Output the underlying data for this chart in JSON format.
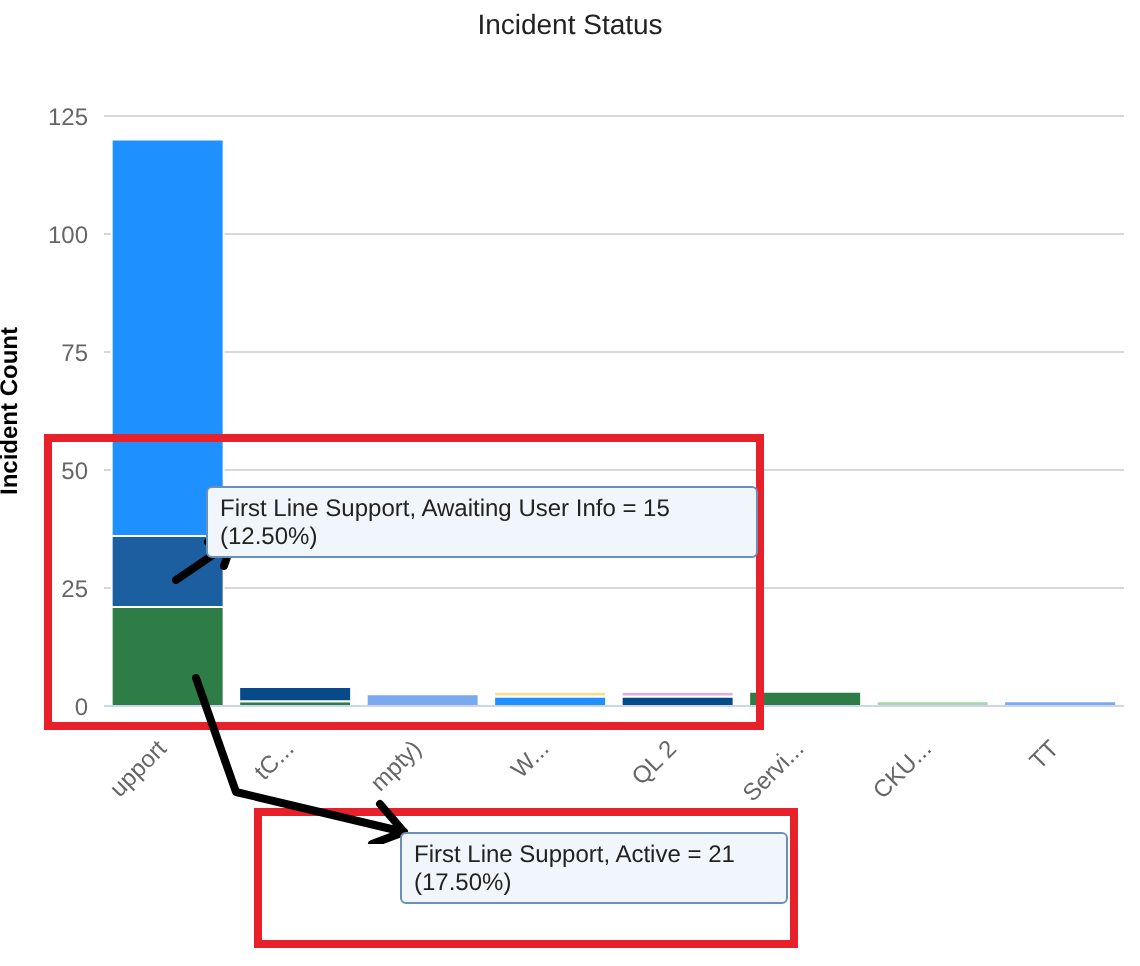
{
  "chart_data": {
    "type": "bar",
    "title": "Incident Status",
    "ylabel": "Incident Count",
    "stacked": true,
    "grid": "y",
    "categories": [
      "upport",
      "tC...",
      "mpty)",
      "W...",
      "QL 2",
      "Servi...",
      "CKU...",
      "TT"
    ],
    "series": [
      {
        "color": "#2e7d46",
        "values": [
          21,
          1,
          null,
          null,
          null,
          3,
          null,
          null
        ]
      },
      {
        "color": "#1c5fa0",
        "values": [
          15,
          null,
          null,
          null,
          null,
          null,
          null,
          null
        ]
      },
      {
        "color": "#1e90ff",
        "values": [
          84,
          null,
          null,
          2,
          null,
          null,
          null,
          null
        ]
      },
      {
        "color": "#064a8a",
        "values": [
          null,
          3,
          null,
          null,
          2,
          null,
          null,
          null
        ]
      },
      {
        "color": "#7aa9ef",
        "values": [
          null,
          null,
          2.5,
          null,
          null,
          null,
          null,
          1
        ]
      },
      {
        "color": "#f5e08c",
        "values": [
          null,
          null,
          null,
          1,
          null,
          null,
          null,
          null
        ]
      },
      {
        "color": "#d8b4d8",
        "values": [
          null,
          null,
          null,
          null,
          1,
          null,
          null,
          null
        ]
      },
      {
        "color": "#a9d4b0",
        "values": [
          null,
          null,
          null,
          null,
          null,
          null,
          1,
          null
        ]
      }
    ],
    "ylim": [
      0,
      125
    ],
    "yticks": [
      0,
      25,
      50,
      75,
      100,
      125
    ],
    "annotations": [
      "First Line Support, Awaiting User Info = 15 (12.50%)",
      "First Line Support, Active = 21 (17.50%)"
    ]
  }
}
